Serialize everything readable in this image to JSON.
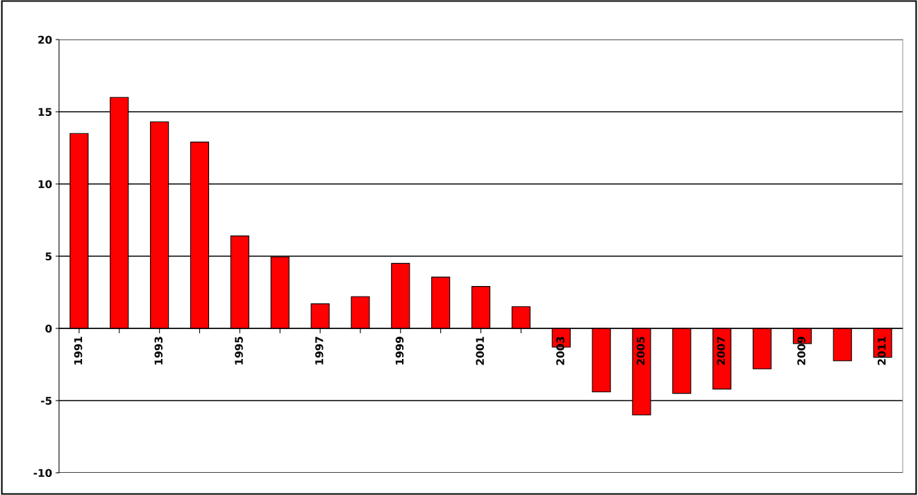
{
  "chart_data": {
    "type": "bar",
    "categories": [
      "1991",
      null,
      "1993",
      null,
      "1995",
      null,
      "1997",
      null,
      "1999",
      null,
      "2001",
      null,
      "2003",
      null,
      "2005",
      null,
      "2007",
      null,
      "2009",
      null,
      "2011"
    ],
    "values": [
      13.5,
      16.0,
      14.3,
      12.9,
      6.4,
      4.95,
      1.7,
      2.2,
      4.5,
      3.55,
      2.9,
      1.5,
      -1.3,
      -4.4,
      -6.0,
      -4.5,
      -4.2,
      -2.8,
      -1.05,
      -2.25,
      -2.0
    ],
    "color": "#ff0000",
    "ylim": [
      -10,
      20
    ],
    "yticks": [
      -10,
      -5,
      0,
      5,
      10,
      15,
      20
    ],
    "grid": "y"
  }
}
